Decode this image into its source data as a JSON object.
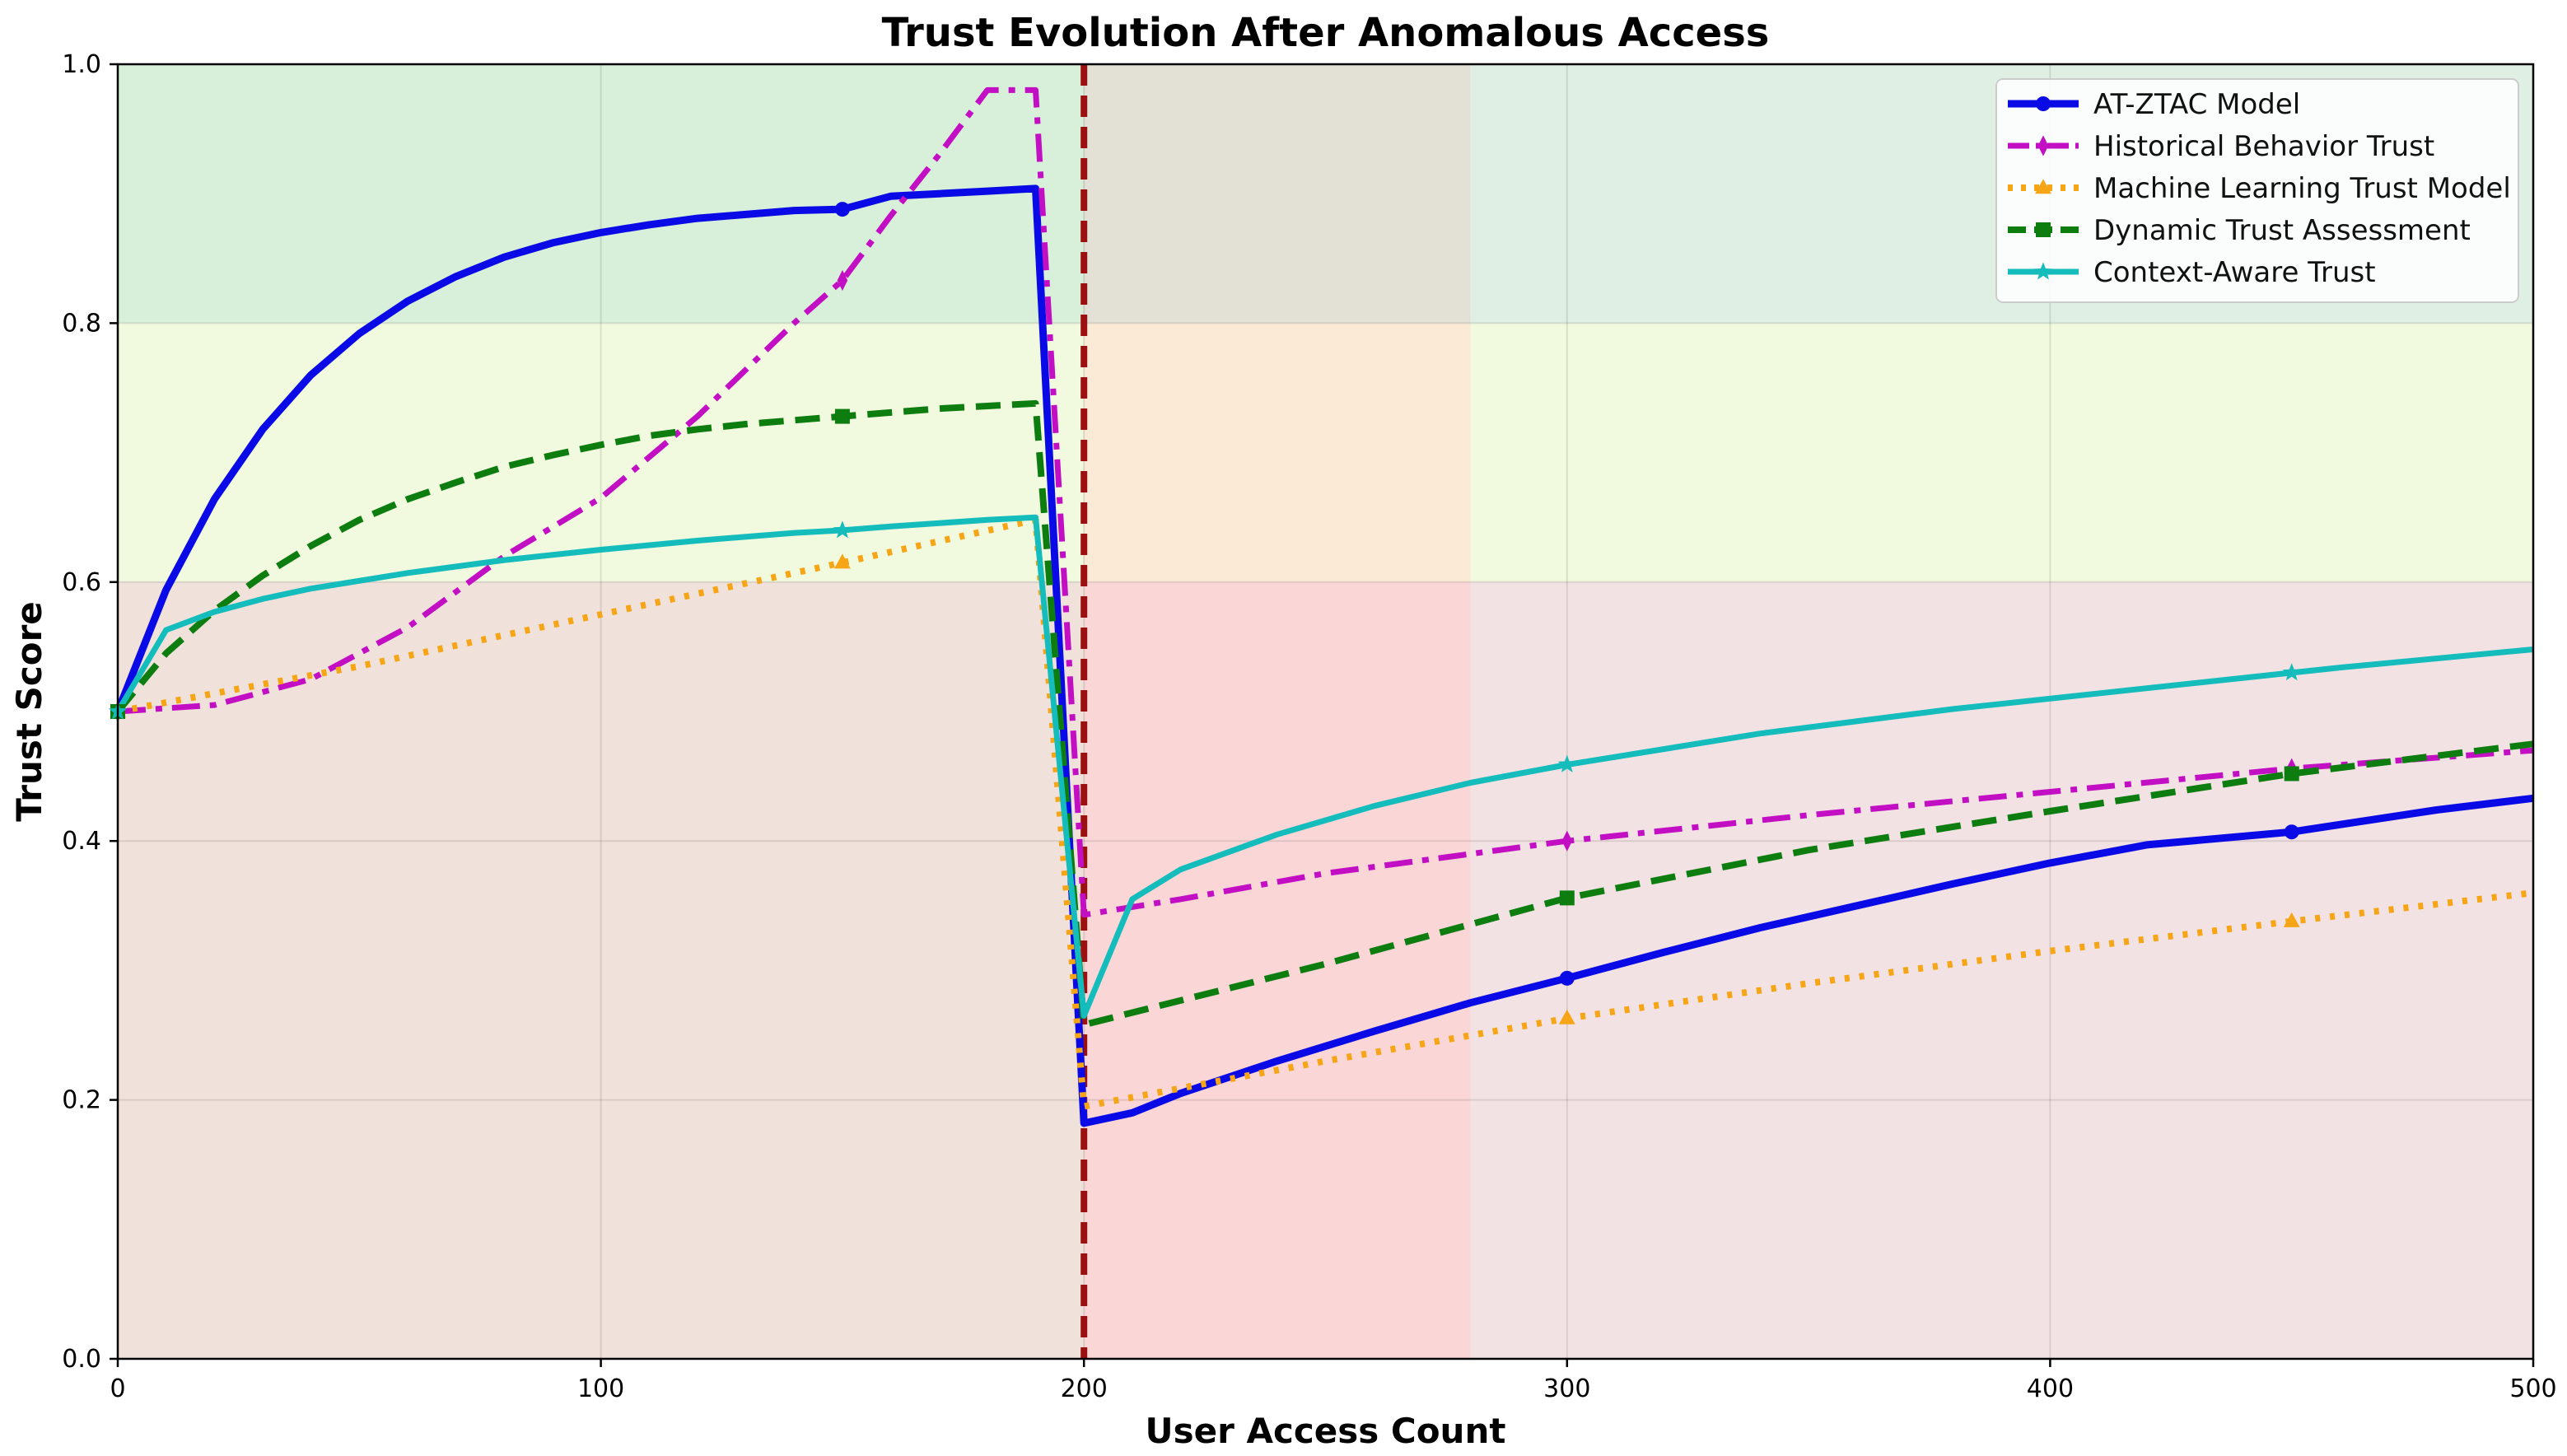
{
  "chart_data": {
    "type": "line",
    "title": "Trust Evolution After Anomalous Access",
    "xlabel": "User Access Count",
    "ylabel": "Trust Score",
    "xlim": [
      0,
      500
    ],
    "ylim": [
      0.0,
      1.0
    ],
    "x_ticks": [
      0,
      100,
      200,
      300,
      400,
      500
    ],
    "x_tick_labels": [
      "0",
      "100",
      "200",
      "300",
      "400",
      "500"
    ],
    "y_ticks": [
      0.0,
      0.2,
      0.4,
      0.6,
      0.8,
      1.0
    ],
    "y_tick_labels": [
      "0.0",
      "0.2",
      "0.4",
      "0.6",
      "0.8",
      "1.0"
    ],
    "grid": true,
    "legend_position": "top-right",
    "background_bands": [
      {
        "y_from": 0.8,
        "y_to": 1.0,
        "color": "#d8efd9"
      },
      {
        "y_from": 0.6,
        "y_to": 0.8,
        "color": "#f1f9df"
      },
      {
        "y_from": 0.0,
        "y_to": 0.6,
        "color": "#f3e2e3"
      }
    ],
    "highlight_regions": [
      {
        "x_from": 0,
        "x_to": 200,
        "y_from": 0.0,
        "y_to": 0.6,
        "color": "#f0e2da"
      },
      {
        "x_from": 200,
        "x_to": 280,
        "y_from": 0.8,
        "y_to": 1.0,
        "color": "#e3e0d6"
      },
      {
        "x_from": 200,
        "x_to": 280,
        "y_from": 0.6,
        "y_to": 0.8,
        "color": "#fbead6"
      },
      {
        "x_from": 200,
        "x_to": 280,
        "y_from": 0.0,
        "y_to": 0.6,
        "color": "#fad6d6"
      },
      {
        "x_from": 280,
        "x_to": 500,
        "y_from": 0.8,
        "y_to": 1.0,
        "color": "#dfefe4"
      }
    ],
    "event_line": {
      "x": 200,
      "color": "#9b1111"
    },
    "series": [
      {
        "name": "AT-ZTAC Model",
        "color": "#0a0ae6",
        "dash": "solid",
        "width": 9,
        "marker": "circle",
        "x": [
          0,
          10,
          20,
          30,
          40,
          50,
          60,
          70,
          80,
          90,
          100,
          110,
          120,
          130,
          140,
          150,
          160,
          170,
          180,
          190,
          200,
          210,
          220,
          240,
          260,
          280,
          300,
          320,
          340,
          360,
          380,
          400,
          420,
          450,
          480,
          500
        ],
        "values": [
          0.5,
          0.594,
          0.664,
          0.718,
          0.76,
          0.792,
          0.817,
          0.836,
          0.851,
          0.862,
          0.87,
          0.876,
          0.881,
          0.884,
          0.887,
          0.888,
          0.898,
          0.9,
          0.902,
          0.904,
          0.182,
          0.19,
          0.205,
          0.23,
          0.253,
          0.275,
          0.294,
          0.314,
          0.333,
          0.35,
          0.367,
          0.383,
          0.397,
          0.407,
          0.424,
          0.433
        ],
        "marker_x": [
          150,
          300,
          450
        ]
      },
      {
        "name": "Historical Behavior Trust",
        "color": "#c30fc3",
        "dash": "dashdot",
        "width": 7,
        "marker": "diamond",
        "x": [
          0,
          20,
          40,
          60,
          80,
          100,
          120,
          140,
          150,
          160,
          170,
          180,
          182,
          190,
          200,
          220,
          250,
          300,
          350,
          400,
          450,
          500
        ],
        "values": [
          0.5,
          0.505,
          0.525,
          0.565,
          0.62,
          0.665,
          0.728,
          0.8,
          0.833,
          0.883,
          0.93,
          0.98,
          0.98,
          0.98,
          0.343,
          0.355,
          0.375,
          0.4,
          0.42,
          0.438,
          0.456,
          0.47
        ],
        "marker_x": [
          150,
          300,
          450
        ]
      },
      {
        "name": "Machine Learning Trust Model",
        "color": "#f5a516",
        "dash": "dotted",
        "width": 8,
        "marker": "triangle",
        "x": [
          0,
          50,
          100,
          150,
          190,
          200,
          250,
          300,
          350,
          400,
          450,
          500
        ],
        "values": [
          0.5,
          0.535,
          0.575,
          0.615,
          0.648,
          0.195,
          0.23,
          0.263,
          0.29,
          0.315,
          0.338,
          0.36
        ],
        "marker_x": [
          150,
          300,
          450
        ]
      },
      {
        "name": "Dynamic Trust Assessment",
        "color": "#0d7d10",
        "dash": "dashed",
        "width": 8,
        "marker": "square",
        "x": [
          0,
          10,
          20,
          30,
          40,
          50,
          60,
          70,
          80,
          90,
          100,
          110,
          120,
          130,
          140,
          150,
          160,
          170,
          180,
          190,
          200,
          250,
          300,
          350,
          400,
          450,
          500
        ],
        "values": [
          0.5,
          0.545,
          0.578,
          0.605,
          0.628,
          0.648,
          0.664,
          0.677,
          0.689,
          0.698,
          0.706,
          0.713,
          0.718,
          0.722,
          0.725,
          0.728,
          0.731,
          0.734,
          0.736,
          0.738,
          0.258,
          0.305,
          0.356,
          0.393,
          0.423,
          0.452,
          0.475
        ],
        "marker_x": [
          150,
          300,
          450
        ]
      },
      {
        "name": "Context-Aware Trust",
        "color": "#14bcbc",
        "dash": "solid",
        "width": 7,
        "marker": "star",
        "x": [
          0,
          10,
          20,
          30,
          40,
          60,
          80,
          100,
          120,
          140,
          150,
          160,
          180,
          190,
          200,
          210,
          220,
          240,
          260,
          280,
          300,
          340,
          380,
          420,
          460,
          500
        ],
        "values": [
          0.5,
          0.563,
          0.577,
          0.587,
          0.595,
          0.607,
          0.617,
          0.625,
          0.632,
          0.638,
          0.64,
          0.643,
          0.648,
          0.65,
          0.265,
          0.355,
          0.378,
          0.405,
          0.427,
          0.445,
          0.459,
          0.483,
          0.502,
          0.518,
          0.534,
          0.548
        ],
        "marker_x": [
          150,
          300,
          450
        ]
      }
    ]
  }
}
